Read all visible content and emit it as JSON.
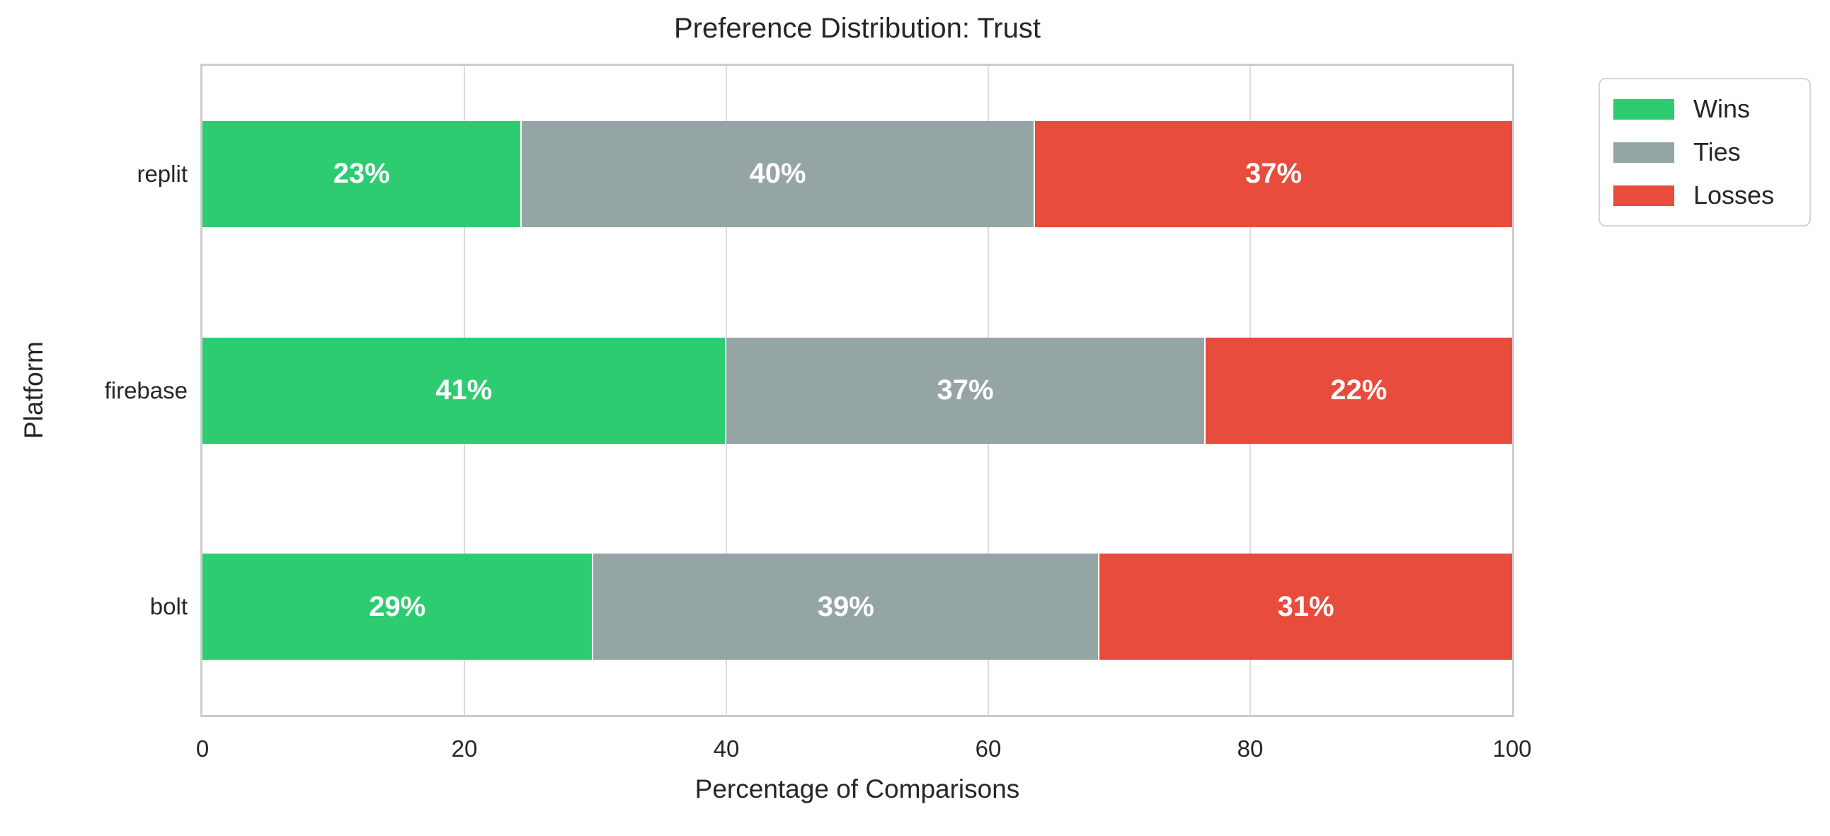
{
  "title": "Preference Distribution: Trust",
  "axes": {
    "x_label": "Percentage of Comparisons",
    "y_label": "Platform",
    "x_ticks": [
      "0",
      "20",
      "40",
      "60",
      "80",
      "100"
    ],
    "x_range": [
      0,
      100
    ]
  },
  "legend": {
    "items": [
      {
        "label": "Wins",
        "color": "#2ecc71"
      },
      {
        "label": "Ties",
        "color": "#95a5a6"
      },
      {
        "label": "Losses",
        "color": "#e74c3c"
      }
    ]
  },
  "colors": {
    "wins": "#2ecc71",
    "ties": "#95a5a6",
    "losses": "#e74c3c",
    "grid": "#dcdcdc",
    "spine": "#cccccc",
    "text": "#262626",
    "bar_label": "#ffffff",
    "background": "#ffffff"
  },
  "chart_data": {
    "type": "bar",
    "orientation": "horizontal",
    "stacked": true,
    "title": "Preference Distribution: Trust",
    "xlabel": "Percentage of Comparisons",
    "ylabel": "Platform",
    "xlim": [
      0,
      100
    ],
    "grid": true,
    "legend_position": "outside upper right",
    "categories": [
      "replit",
      "firebase",
      "bolt"
    ],
    "series": [
      {
        "name": "Wins",
        "color": "#2ecc71",
        "values": [
          23,
          41,
          29
        ]
      },
      {
        "name": "Ties",
        "color": "#95a5a6",
        "values": [
          40,
          37,
          39
        ]
      },
      {
        "name": "Losses",
        "color": "#e74c3c",
        "values": [
          37,
          22,
          31
        ]
      }
    ],
    "bar_labels": [
      [
        "23%",
        "40%",
        "37%"
      ],
      [
        "41%",
        "37%",
        "22%"
      ],
      [
        "29%",
        "39%",
        "31%"
      ]
    ]
  }
}
